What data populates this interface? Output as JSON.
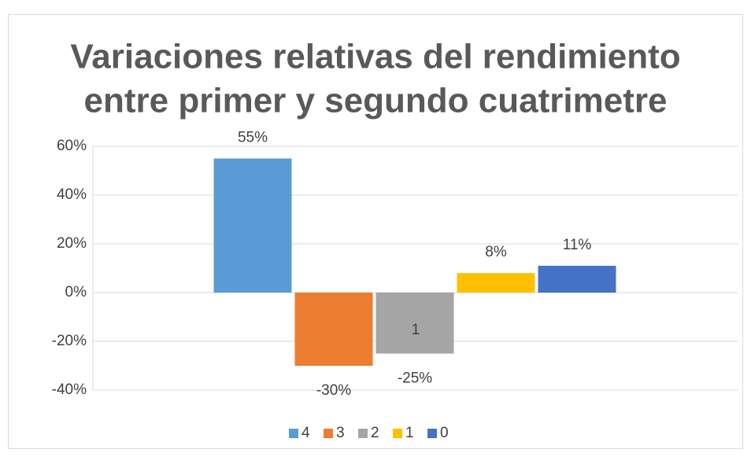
{
  "chart_data": {
    "type": "bar",
    "title": [
      "Variaciones relativas del rendimiento",
      "entre primer y segundo cuatrimetre"
    ],
    "categories": [
      "1"
    ],
    "series": [
      {
        "name": "4",
        "color": "#5b9bd5",
        "values": [
          55
        ],
        "value_labels": [
          "55%"
        ]
      },
      {
        "name": "3",
        "color": "#ed7d31",
        "values": [
          -30
        ],
        "value_labels": [
          "-30%"
        ]
      },
      {
        "name": "2",
        "color": "#a5a5a5",
        "values": [
          -25
        ],
        "value_labels": [
          "-25%"
        ]
      },
      {
        "name": "1",
        "color": "#ffc000",
        "values": [
          8
        ],
        "value_labels": [
          "8%"
        ]
      },
      {
        "name": "0",
        "color": "#4472c4",
        "values": [
          11
        ],
        "value_labels": [
          "11%"
        ]
      }
    ],
    "ylim": [
      -40,
      60
    ],
    "yticks": [
      {
        "value": -40,
        "label": "-40%"
      },
      {
        "value": -20,
        "label": "-20%"
      },
      {
        "value": 0,
        "label": "0%"
      },
      {
        "value": 20,
        "label": "20%"
      },
      {
        "value": 40,
        "label": "40%"
      },
      {
        "value": 60,
        "label": "60%"
      }
    ],
    "grid": true,
    "legend": "bottom"
  }
}
